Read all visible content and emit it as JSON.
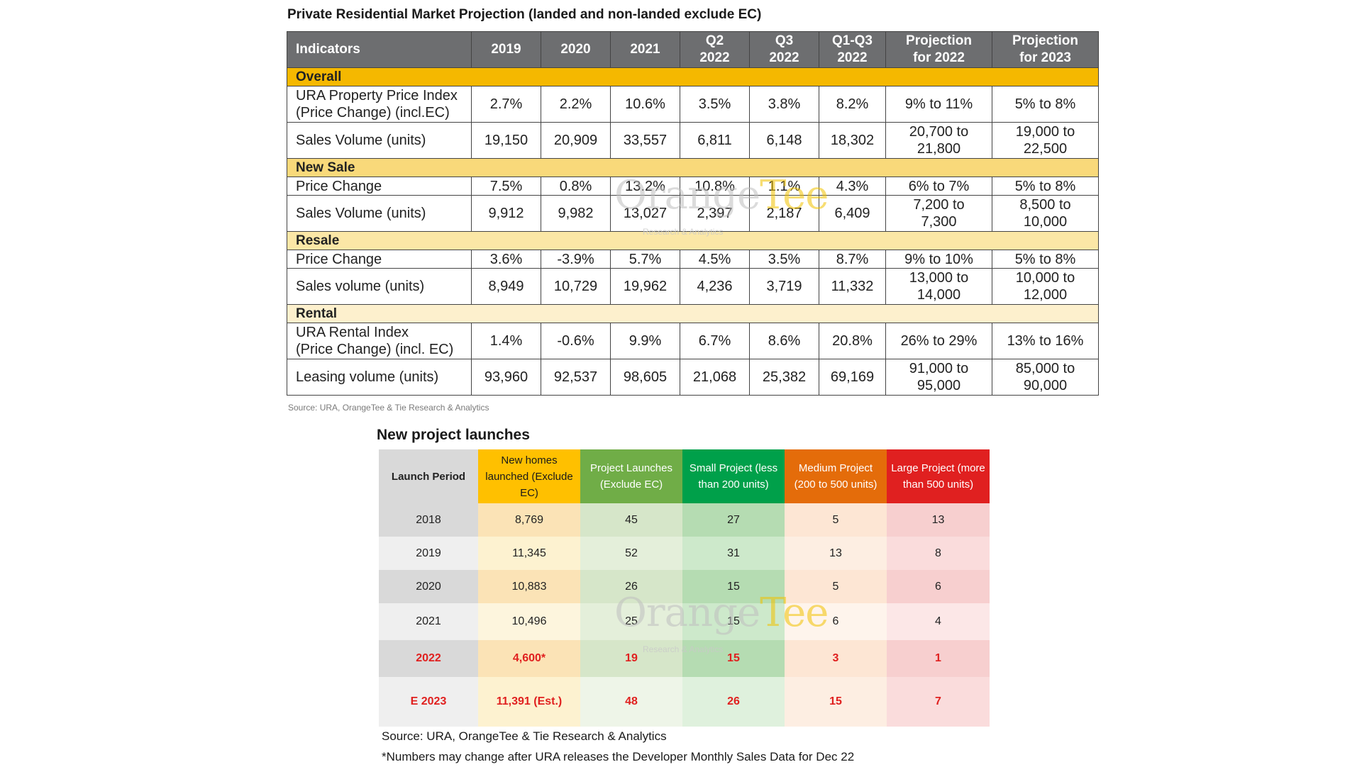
{
  "projection": {
    "title": "Private Residential Market Projection (landed and non-landed exclude EC)",
    "headers": [
      "Indicators",
      "2019",
      "2020",
      "2021",
      "Q2\n2022",
      "Q3\n2022",
      "Q1-Q3\n2022",
      "Projection\nfor 2022",
      "Projection\nfor 2023"
    ],
    "sections": [
      {
        "name": "Overall",
        "rows": [
          {
            "label": "URA Property Price Index\n(Price Change) (incl.EC)",
            "values": [
              "2.7%",
              "2.2%",
              "10.6%",
              "3.5%",
              "3.8%",
              "8.2%",
              "9% to 11%",
              "5% to 8%"
            ]
          },
          {
            "label": "Sales Volume (units)",
            "values": [
              "19,150",
              "20,909",
              "33,557",
              "6,811",
              "6,148",
              "18,302",
              "20,700 to\n21,800",
              "19,000 to\n22,500"
            ]
          }
        ]
      },
      {
        "name": "New Sale",
        "rows": [
          {
            "label": "Price Change",
            "values": [
              "7.5%",
              "0.8%",
              "13.2%",
              "10.8%",
              "1.1%",
              "4.3%",
              "6% to 7%",
              "5% to 8%"
            ]
          },
          {
            "label": "Sales Volume (units)",
            "values": [
              "9,912",
              "9,982",
              "13,027",
              "2,397",
              "2,187",
              "6,409",
              "7,200 to\n7,300",
              "8,500 to\n10,000"
            ]
          }
        ]
      },
      {
        "name": "Resale",
        "rows": [
          {
            "label": "Price Change",
            "values": [
              "3.6%",
              "-3.9%",
              "5.7%",
              "4.5%",
              "3.5%",
              "8.7%",
              "9% to 10%",
              "5% to 8%"
            ]
          },
          {
            "label": "Sales volume (units)",
            "values": [
              "8,949",
              "10,729",
              "19,962",
              "4,236",
              "3,719",
              "11,332",
              "13,000 to\n14,000",
              "10,000 to\n12,000"
            ]
          }
        ]
      },
      {
        "name": "Rental",
        "rows": [
          {
            "label": "URA Rental Index\n(Price Change) (incl. EC)",
            "values": [
              "1.4%",
              "-0.6%",
              "9.9%",
              "6.7%",
              "8.6%",
              "20.8%",
              "26% to 29%",
              "13% to 16%"
            ]
          },
          {
            "label": "Leasing volume (units)",
            "values": [
              "93,960",
              "92,537",
              "98,605",
              "21,068",
              "25,382",
              "69,169",
              "91,000 to\n95,000",
              "85,000 to\n90,000"
            ]
          }
        ]
      }
    ],
    "source": "Source: URA, OrangeTee & Tie Research & Analytics"
  },
  "launches": {
    "title": "New project launches",
    "headers": [
      "Launch Period",
      "New homes launched (Exclude EC)",
      "Project Launches (Exclude EC)",
      "Small Project (less than 200 units)",
      "Medium Project (200 to 500 units)",
      "Large Project (more than 500 units)"
    ],
    "rows": [
      {
        "period": "2018",
        "new_homes": "8,769",
        "projects": "45",
        "small": "27",
        "medium": "5",
        "large": "13"
      },
      {
        "period": "2019",
        "new_homes": "11,345",
        "projects": "52",
        "small": "31",
        "medium": "13",
        "large": "8"
      },
      {
        "period": "2020",
        "new_homes": "10,883",
        "projects": "26",
        "small": "15",
        "medium": "5",
        "large": "6"
      },
      {
        "period": "2021",
        "new_homes": "10,496",
        "projects": "25",
        "small": "15",
        "medium": "6",
        "large": "4"
      },
      {
        "period": "2022",
        "new_homes": "4,600*",
        "projects": "19",
        "small": "15",
        "medium": "3",
        "large": "1"
      },
      {
        "period": "E 2023",
        "new_homes": "11,391 (Est.)",
        "projects": "48",
        "small": "26",
        "medium": "15",
        "large": "7"
      }
    ],
    "source": "Source: URA, OrangeTee & Tie Research & Analytics",
    "footnote": "*Numbers may change after URA releases the Developer Monthly Sales Data for Dec 22"
  },
  "watermark": {
    "brand_part1": "Orange",
    "brand_part2": "Tee",
    "tagline": "Research & Analytics"
  },
  "colors": {
    "header_grey": "#6d6e70",
    "section_yellow": "#f5b800",
    "highlight_red": "#e0201f",
    "brand_yellow": "#f2c200"
  }
}
